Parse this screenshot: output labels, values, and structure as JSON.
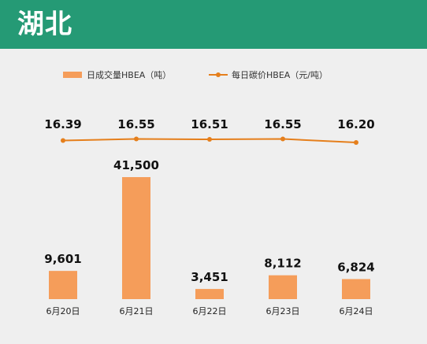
{
  "header": {
    "title": "湖北"
  },
  "colors": {
    "header_bg": "#259a75",
    "bar": "#f59d5a",
    "line": "#e57f1c",
    "plot_bg": "#efefef"
  },
  "chart_data": {
    "type": "bar",
    "categories": [
      "6月20日",
      "6月21日",
      "6月22日",
      "6月23日",
      "6月24日"
    ],
    "series": [
      {
        "name": "日成交量HBEA（吨）",
        "type": "bar",
        "values": [
          9601,
          41500,
          3451,
          8112,
          6824
        ],
        "labels": [
          "9,601",
          "41,500",
          "3,451",
          "8,112",
          "6,824"
        ]
      },
      {
        "name": "每日碳价HBEA（元/吨）",
        "type": "line",
        "values": [
          16.39,
          16.55,
          16.51,
          16.55,
          16.2
        ],
        "labels": [
          "16.39",
          "16.55",
          "16.51",
          "16.55",
          "16.20"
        ]
      }
    ],
    "legend": "top-center",
    "grid": false
  }
}
